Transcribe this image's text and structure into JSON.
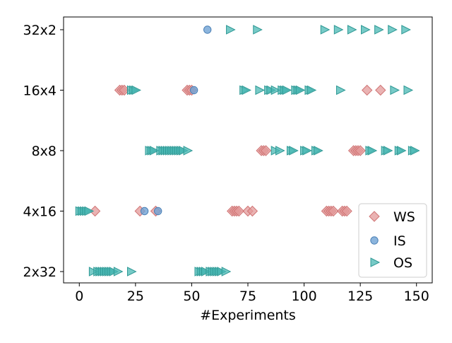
{
  "chart_data": {
    "type": "scatter",
    "title": "",
    "xlabel": "#Experiments",
    "ylabel": "",
    "xlim": [
      -7,
      157
    ],
    "x_ticks": [
      0,
      25,
      50,
      75,
      100,
      125,
      150
    ],
    "categories": [
      "2x32",
      "4x16",
      "8x8",
      "16x4",
      "32x2"
    ],
    "grid": false,
    "legend_position": "lower-right",
    "series": [
      {
        "name": "WS",
        "marker": "diamond",
        "color": "#e39a9a",
        "edge": "#d07575",
        "points": [
          {
            "x": 7,
            "y": "4x16"
          },
          {
            "x": 27,
            "y": "4x16"
          },
          {
            "x": 34,
            "y": "4x16"
          },
          {
            "x": 68,
            "y": "4x16"
          },
          {
            "x": 69,
            "y": "4x16"
          },
          {
            "x": 70,
            "y": "4x16"
          },
          {
            "x": 71,
            "y": "4x16"
          },
          {
            "x": 75,
            "y": "4x16"
          },
          {
            "x": 77,
            "y": "4x16"
          },
          {
            "x": 110,
            "y": "4x16"
          },
          {
            "x": 111,
            "y": "4x16"
          },
          {
            "x": 112,
            "y": "4x16"
          },
          {
            "x": 113,
            "y": "4x16"
          },
          {
            "x": 117,
            "y": "4x16"
          },
          {
            "x": 118,
            "y": "4x16"
          },
          {
            "x": 119,
            "y": "4x16"
          },
          {
            "x": 81,
            "y": "8x8"
          },
          {
            "x": 82,
            "y": "8x8"
          },
          {
            "x": 83,
            "y": "8x8"
          },
          {
            "x": 122,
            "y": "8x8"
          },
          {
            "x": 123,
            "y": "8x8"
          },
          {
            "x": 124,
            "y": "8x8"
          },
          {
            "x": 125,
            "y": "8x8"
          },
          {
            "x": 18,
            "y": "16x4"
          },
          {
            "x": 19,
            "y": "16x4"
          },
          {
            "x": 20,
            "y": "16x4"
          },
          {
            "x": 48,
            "y": "16x4"
          },
          {
            "x": 49,
            "y": "16x4"
          },
          {
            "x": 50,
            "y": "16x4"
          },
          {
            "x": 128,
            "y": "16x4"
          },
          {
            "x": 134,
            "y": "16x4"
          }
        ]
      },
      {
        "name": "IS",
        "marker": "circle",
        "color": "#6fa3d4",
        "edge": "#4a7fb5",
        "points": [
          {
            "x": 29,
            "y": "4x16"
          },
          {
            "x": 35,
            "y": "4x16"
          },
          {
            "x": 51,
            "y": "16x4"
          },
          {
            "x": 57,
            "y": "32x2"
          }
        ]
      },
      {
        "name": "OS",
        "marker": "triangle-right",
        "color": "#4ab8b4",
        "edge": "#2f9995",
        "points": [
          {
            "x": 6,
            "y": "2x32"
          },
          {
            "x": 8,
            "y": "2x32"
          },
          {
            "x": 9,
            "y": "2x32"
          },
          {
            "x": 10,
            "y": "2x32"
          },
          {
            "x": 11,
            "y": "2x32"
          },
          {
            "x": 12,
            "y": "2x32"
          },
          {
            "x": 13,
            "y": "2x32"
          },
          {
            "x": 14,
            "y": "2x32"
          },
          {
            "x": 15,
            "y": "2x32"
          },
          {
            "x": 17,
            "y": "2x32"
          },
          {
            "x": 23,
            "y": "2x32"
          },
          {
            "x": 53,
            "y": "2x32"
          },
          {
            "x": 54,
            "y": "2x32"
          },
          {
            "x": 55,
            "y": "2x32"
          },
          {
            "x": 56,
            "y": "2x32"
          },
          {
            "x": 58,
            "y": "2x32"
          },
          {
            "x": 59,
            "y": "2x32"
          },
          {
            "x": 60,
            "y": "2x32"
          },
          {
            "x": 61,
            "y": "2x32"
          },
          {
            "x": 62,
            "y": "2x32"
          },
          {
            "x": 63,
            "y": "2x32"
          },
          {
            "x": 65,
            "y": "2x32"
          },
          {
            "x": 0,
            "y": "4x16"
          },
          {
            "x": 1,
            "y": "4x16"
          },
          {
            "x": 2,
            "y": "4x16"
          },
          {
            "x": 3,
            "y": "4x16"
          },
          {
            "x": 4,
            "y": "4x16"
          },
          {
            "x": 31,
            "y": "8x8"
          },
          {
            "x": 32,
            "y": "8x8"
          },
          {
            "x": 33,
            "y": "8x8"
          },
          {
            "x": 36,
            "y": "8x8"
          },
          {
            "x": 37,
            "y": "8x8"
          },
          {
            "x": 38,
            "y": "8x8"
          },
          {
            "x": 39,
            "y": "8x8"
          },
          {
            "x": 40,
            "y": "8x8"
          },
          {
            "x": 41,
            "y": "8x8"
          },
          {
            "x": 42,
            "y": "8x8"
          },
          {
            "x": 43,
            "y": "8x8"
          },
          {
            "x": 44,
            "y": "8x8"
          },
          {
            "x": 45,
            "y": "8x8"
          },
          {
            "x": 46,
            "y": "8x8"
          },
          {
            "x": 48,
            "y": "8x8"
          },
          {
            "x": 87,
            "y": "8x8"
          },
          {
            "x": 89,
            "y": "8x8"
          },
          {
            "x": 94,
            "y": "8x8"
          },
          {
            "x": 95,
            "y": "8x8"
          },
          {
            "x": 100,
            "y": "8x8"
          },
          {
            "x": 101,
            "y": "8x8"
          },
          {
            "x": 105,
            "y": "8x8"
          },
          {
            "x": 106,
            "y": "8x8"
          },
          {
            "x": 129,
            "y": "8x8"
          },
          {
            "x": 130,
            "y": "8x8"
          },
          {
            "x": 136,
            "y": "8x8"
          },
          {
            "x": 137,
            "y": "8x8"
          },
          {
            "x": 142,
            "y": "8x8"
          },
          {
            "x": 143,
            "y": "8x8"
          },
          {
            "x": 148,
            "y": "8x8"
          },
          {
            "x": 149,
            "y": "8x8"
          },
          {
            "x": 23,
            "y": "16x4"
          },
          {
            "x": 24,
            "y": "16x4"
          },
          {
            "x": 25,
            "y": "16x4"
          },
          {
            "x": 73,
            "y": "16x4"
          },
          {
            "x": 74,
            "y": "16x4"
          },
          {
            "x": 80,
            "y": "16x4"
          },
          {
            "x": 84,
            "y": "16x4"
          },
          {
            "x": 85,
            "y": "16x4"
          },
          {
            "x": 87,
            "y": "16x4"
          },
          {
            "x": 90,
            "y": "16x4"
          },
          {
            "x": 91,
            "y": "16x4"
          },
          {
            "x": 92,
            "y": "16x4"
          },
          {
            "x": 96,
            "y": "16x4"
          },
          {
            "x": 97,
            "y": "16x4"
          },
          {
            "x": 98,
            "y": "16x4"
          },
          {
            "x": 102,
            "y": "16x4"
          },
          {
            "x": 103,
            "y": "16x4"
          },
          {
            "x": 116,
            "y": "16x4"
          },
          {
            "x": 140,
            "y": "16x4"
          },
          {
            "x": 146,
            "y": "16x4"
          },
          {
            "x": 67,
            "y": "32x2"
          },
          {
            "x": 79,
            "y": "32x2"
          },
          {
            "x": 109,
            "y": "32x2"
          },
          {
            "x": 115,
            "y": "32x2"
          },
          {
            "x": 121,
            "y": "32x2"
          },
          {
            "x": 127,
            "y": "32x2"
          },
          {
            "x": 133,
            "y": "32x2"
          },
          {
            "x": 139,
            "y": "32x2"
          },
          {
            "x": 145,
            "y": "32x2"
          }
        ]
      }
    ]
  }
}
